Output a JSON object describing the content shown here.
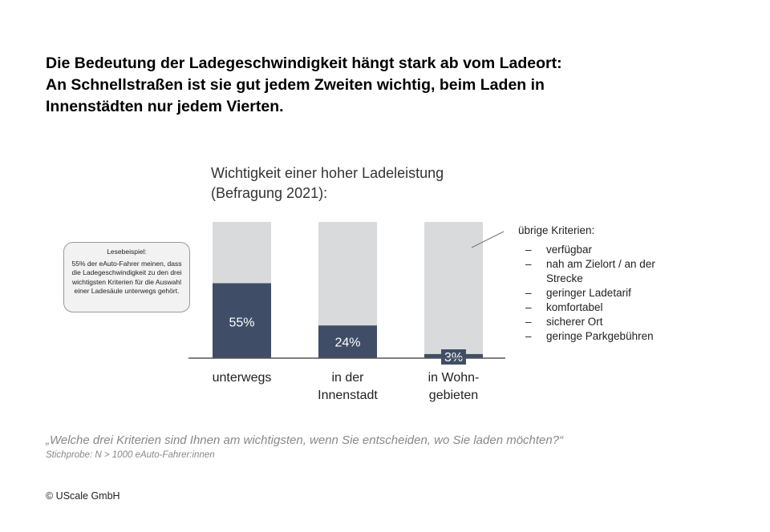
{
  "headline": [
    "Die Bedeutung der Ladegeschwindigkeit hängt stark ab vom Ladeort:",
    "An Schnellstraßen ist sie gut jedem Zweiten wichtig, beim Laden in",
    "Innenstädten nur jedem Vierten."
  ],
  "note": {
    "title": "Lesebeispiel:",
    "text": "55% der eAuto-Fahrer meinen, dass die Ladegeschwindigkeit zu den drei wichtigsten Kriterien für die Auswahl einer Ladesäule unterwegs gehört."
  },
  "others": {
    "title": "übrige Kriterien:",
    "dash": "–",
    "items": [
      "verfügbar",
      "nah am Zielort / an der Strecke",
      "geringer Ladetarif",
      "komfortabel",
      "sicherer Ort",
      "geringe Parkgebühren"
    ]
  },
  "footer": {
    "question": "„Welche drei Kriterien sind Ihnen am wichtigsten, wenn Sie entscheiden, wo Sie laden möchten?“",
    "sample": "Stichprobe: N > 1000 eAuto-Fahrer:innen",
    "copyright": "© UScale GmbH"
  },
  "chart_data": {
    "type": "bar",
    "stacked": true,
    "title": [
      "Wichtigkeit einer hoher Ladeleistung",
      "(Befragung 2021):"
    ],
    "categories": [
      [
        "unterwegs"
      ],
      [
        "in der",
        "Innenstadt"
      ],
      [
        "in Wohn-",
        "gebieten"
      ]
    ],
    "values": [
      55,
      24,
      3
    ],
    "labels": [
      "55%",
      "24%",
      "3%"
    ],
    "ylim": [
      0,
      100
    ],
    "colors": {
      "value": "#3f4e66",
      "rest": "#d9dadc",
      "axis": "#555555"
    }
  }
}
